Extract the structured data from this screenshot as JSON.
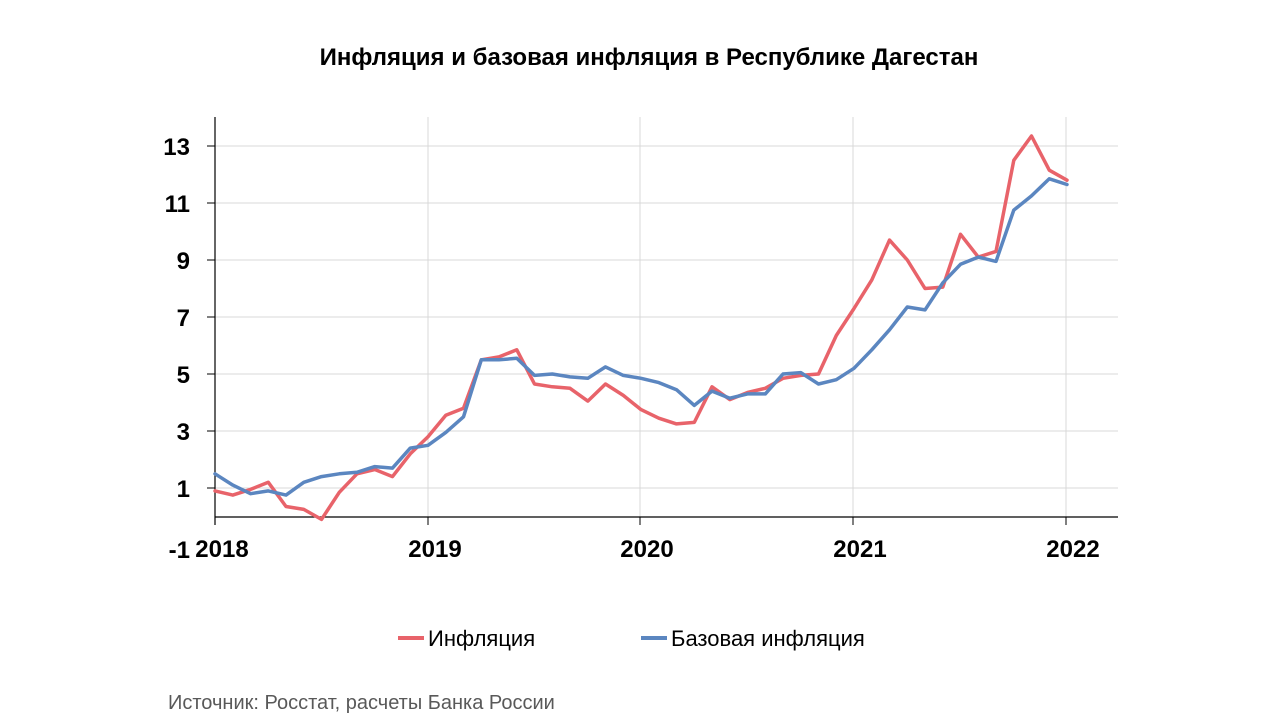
{
  "chart_data": {
    "type": "line",
    "title": "Инфляция и базовая инфляция в Республике Дагестан",
    "xlabel": "",
    "ylabel": "",
    "x_start": "2018-01",
    "x_ticks": [
      "2018",
      "2019",
      "2020",
      "2021",
      "2022"
    ],
    "y_ticks": [
      "-1",
      "1",
      "3",
      "5",
      "7",
      "9",
      "11",
      "13"
    ],
    "ylim": [
      -1,
      14
    ],
    "grid": true,
    "legend_position": "bottom",
    "series": [
      {
        "name": "Инфляция",
        "color": "#e8636a",
        "values": [
          0.9,
          0.75,
          0.95,
          1.2,
          0.35,
          0.25,
          -0.1,
          0.85,
          1.5,
          1.65,
          1.4,
          2.2,
          2.8,
          3.55,
          3.8,
          5.5,
          5.6,
          5.85,
          4.65,
          4.55,
          4.5,
          4.05,
          4.65,
          4.25,
          3.75,
          3.45,
          3.25,
          3.3,
          4.55,
          4.1,
          4.35,
          4.5,
          4.85,
          4.95,
          5.0,
          6.35,
          7.3,
          8.3,
          9.7,
          9.0,
          8.0,
          8.05,
          9.9,
          9.1,
          9.3,
          12.5,
          13.35,
          12.15,
          11.8
        ]
      },
      {
        "name": "Базовая инфляция",
        "color": "#5b86c0",
        "values": [
          1.5,
          1.1,
          0.8,
          0.9,
          0.75,
          1.2,
          1.4,
          1.5,
          1.55,
          1.75,
          1.7,
          2.4,
          2.5,
          2.95,
          3.5,
          5.5,
          5.5,
          5.55,
          4.95,
          5.0,
          4.9,
          4.85,
          5.25,
          4.95,
          4.85,
          4.7,
          4.45,
          3.9,
          4.4,
          4.15,
          4.3,
          4.3,
          5.0,
          5.05,
          4.65,
          4.8,
          5.2,
          5.85,
          6.55,
          7.35,
          7.25,
          8.2,
          8.85,
          9.1,
          8.95,
          10.75,
          11.25,
          11.85,
          11.65
        ]
      }
    ]
  },
  "source_note": "Источник: Росстат, расчеты Банка России"
}
